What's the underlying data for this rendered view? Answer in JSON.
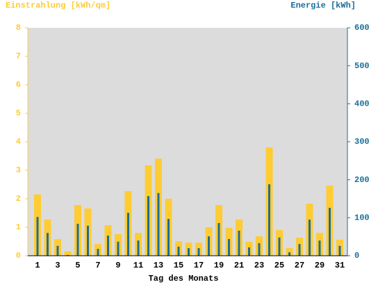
{
  "chart_data": {
    "type": "bar",
    "title": "Einstrahlung [kWh/qm]",
    "y2_title": "Energie [kWh]",
    "x_label": "Tag des Monats",
    "categories": [
      "1",
      null,
      "3",
      null,
      "5",
      null,
      "7",
      null,
      "9",
      null,
      "11",
      null,
      "13",
      null,
      "15",
      null,
      "17",
      null,
      "19",
      null,
      "21",
      null,
      "23",
      null,
      "25",
      null,
      "27",
      null,
      "29",
      null,
      "31"
    ],
    "ylim": [
      0,
      8
    ],
    "yticks": [
      0,
      1,
      2,
      3,
      4,
      5,
      6,
      7,
      8
    ],
    "y2lim": [
      0,
      600
    ],
    "y2ticks": [
      0,
      100,
      200,
      300,
      400,
      500,
      600
    ],
    "series": [
      {
        "name": "Einstrahlung [kWh/qm]",
        "color": "#ffcc33",
        "values": [
          2.15,
          1.27,
          0.58,
          0.15,
          1.78,
          1.66,
          0.41,
          1.07,
          0.76,
          2.27,
          0.8,
          3.17,
          3.41,
          2.0,
          0.51,
          0.46,
          0.46,
          1.0,
          1.78,
          0.98,
          1.27,
          0.49,
          0.68,
          3.8,
          0.9,
          0.27,
          0.63,
          1.83,
          0.8,
          2.46,
          0.56
        ]
      },
      {
        "name": "Energie [kWh]",
        "color": "#1a6e99",
        "axis": "y2",
        "values": [
          102,
          60,
          26,
          2,
          84,
          79,
          18,
          53,
          37,
          113,
          40,
          157,
          165,
          97,
          24,
          20,
          20,
          51,
          86,
          44,
          66,
          22,
          33,
          188,
          48,
          9,
          31,
          95,
          40,
          126,
          26
        ]
      }
    ]
  }
}
